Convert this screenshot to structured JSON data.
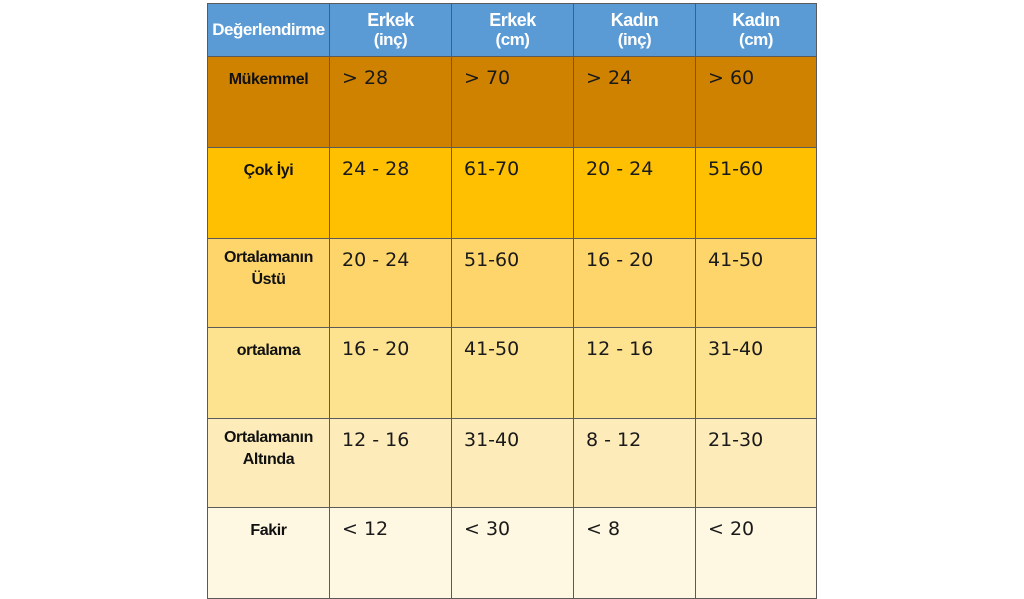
{
  "header": {
    "rating": "Değerlendirme",
    "columns": [
      {
        "line1": "Erkek",
        "line2": "(inç)"
      },
      {
        "line1": "Erkek",
        "line2": "(cm)"
      },
      {
        "line1": "Kadın",
        "line2": "(inç)"
      },
      {
        "line1": "Kadın",
        "line2": "(cm)"
      }
    ]
  },
  "rows": [
    {
      "label": "Mükemmel",
      "values": [
        "> 28",
        "> 70",
        "> 24",
        "> 60"
      ]
    },
    {
      "label": "Çok İyi",
      "values": [
        "24 - 28",
        "61-70",
        "20 - 24",
        "51-60"
      ]
    },
    {
      "label": "Ortalamanın Üstü",
      "values": [
        "20 - 24",
        "51-60",
        "16 - 20",
        "41-50"
      ]
    },
    {
      "label": "ortalama",
      "values": [
        "16 - 20",
        "41-50",
        "12 - 16",
        "31-40"
      ]
    },
    {
      "label": "Ortalamanın Altında",
      "values": [
        "12 - 16",
        "31-40",
        "8 - 12",
        "21-30"
      ]
    },
    {
      "label": "Fakir",
      "values": [
        "< 12",
        "< 30",
        "< 8",
        "< 20"
      ]
    }
  ],
  "colors": {
    "header": "#5b9bd5",
    "rows": [
      "#cf8200",
      "#fec000",
      "#fdd56b",
      "#fde38f",
      "#fdecb9",
      "#fef7e2"
    ]
  }
}
